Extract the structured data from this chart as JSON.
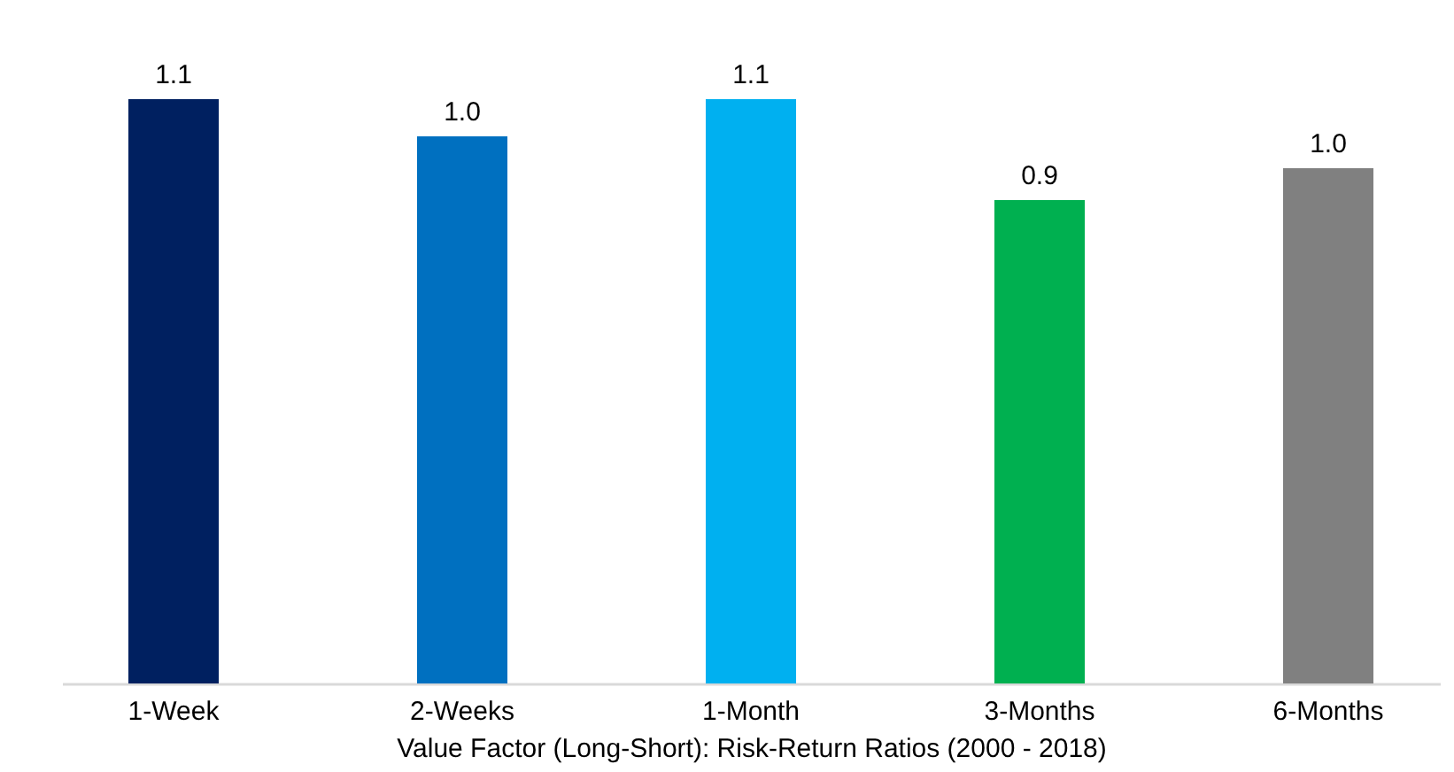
{
  "chart_data": {
    "type": "bar",
    "xlabel": "Value Factor (Long-Short): Risk-Return Ratios (2000 - 2018)",
    "categories": [
      "1-Week",
      "2-Weeks",
      "1-Month",
      "3-Months",
      "6-Months"
    ],
    "values": [
      1.1,
      1.03,
      1.1,
      0.91,
      0.97
    ],
    "value_labels": [
      "1.1",
      "1.0",
      "1.1",
      "0.9",
      "1.0"
    ],
    "colors": [
      "#002060",
      "#0070c0",
      "#00b0f0",
      "#00b050",
      "#808080"
    ],
    "grid": false,
    "legend": false
  }
}
